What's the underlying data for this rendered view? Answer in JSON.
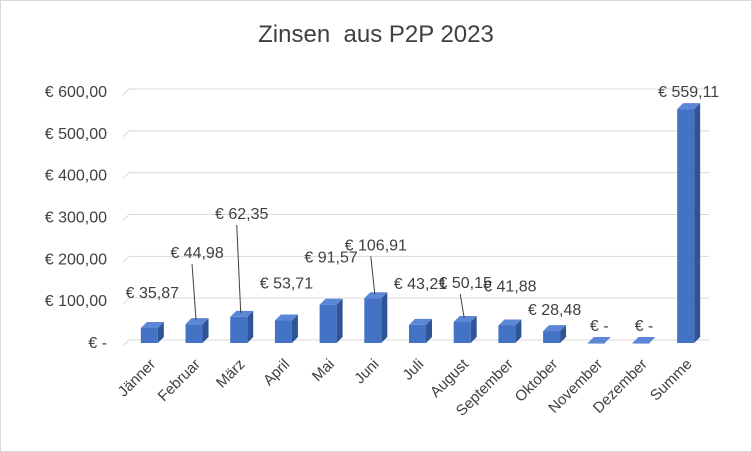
{
  "chart_data": {
    "type": "bar",
    "title": "Zinsen  aus P2P 2023",
    "categories": [
      "Jänner",
      "Februar",
      "März",
      "April",
      "Mai",
      "Juni",
      "Juli",
      "August",
      "September",
      "Oktober",
      "November",
      "Dezember",
      "Summe"
    ],
    "values": [
      35.87,
      44.98,
      62.35,
      53.71,
      91.57,
      106.91,
      43.21,
      50.15,
      41.88,
      28.48,
      0,
      0,
      559.11
    ],
    "data_labels": [
      "€ 35,87",
      "€ 44,98",
      "€ 62,35",
      "€ 53,71",
      "€ 91,57",
      "€ 106,91",
      "€ 43,21",
      "€ 50,15",
      "€ 41,88",
      "€ 28,48",
      "€ -",
      "€ -",
      "€ 559,11"
    ],
    "y_ticks": [
      0,
      100,
      200,
      300,
      400,
      500,
      600
    ],
    "y_tick_labels": [
      "€ -",
      "€ 100,00",
      "€ 200,00",
      "€ 300,00",
      "€ 400,00",
      "€ 500,00",
      "€ 600,00"
    ],
    "ylim": [
      0,
      600
    ],
    "grid": true,
    "legend": "none",
    "bar_style": "3d",
    "colors": {
      "bar_front": "#4472c4",
      "bar_side": "#2f5597",
      "bar_top": "#5b87d6",
      "grid": "#d9d9d9",
      "text": "#404040"
    }
  }
}
